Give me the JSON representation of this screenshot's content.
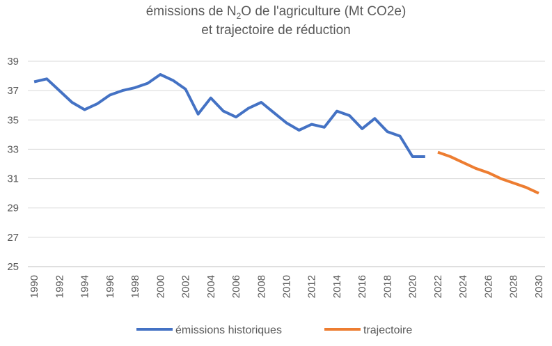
{
  "chart_data": {
    "type": "line",
    "title_parts": [
      "émissions de N",
      "2",
      "O de l'agriculture (Mt CO2e)"
    ],
    "subtitle": "et trajectoire de réduction",
    "ylim": [
      25,
      39
    ],
    "yticks": [
      "25",
      "27",
      "29",
      "31",
      "33",
      "35",
      "37",
      "39"
    ],
    "xticks": [
      "1990",
      "1992",
      "1994",
      "1996",
      "1998",
      "2000",
      "2002",
      "2004",
      "2006",
      "2008",
      "2010",
      "2012",
      "2014",
      "2016",
      "2018",
      "2020",
      "2022",
      "2024",
      "2026",
      "2028",
      "2030"
    ],
    "grid": true,
    "legend_position": "bottom",
    "series": [
      {
        "name": "émissions historiques",
        "color": "#4472C4",
        "x": [
          1990,
          1991,
          1992,
          1993,
          1994,
          1995,
          1996,
          1997,
          1998,
          1999,
          2000,
          2001,
          2002,
          2003,
          2004,
          2005,
          2006,
          2007,
          2008,
          2009,
          2010,
          2011,
          2012,
          2013,
          2014,
          2015,
          2016,
          2017,
          2018,
          2019,
          2020,
          2021
        ],
        "values": [
          37.6,
          37.8,
          37.0,
          36.2,
          35.7,
          36.1,
          36.7,
          37.0,
          37.2,
          37.5,
          38.1,
          37.7,
          37.1,
          35.4,
          36.5,
          35.6,
          35.2,
          35.8,
          36.2,
          35.5,
          34.8,
          34.3,
          34.7,
          34.5,
          35.6,
          35.3,
          34.4,
          35.1,
          34.2,
          33.9,
          32.5,
          32.5
        ]
      },
      {
        "name": "trajectoire",
        "color": "#ED7D31",
        "x": [
          2022,
          2023,
          2024,
          2025,
          2026,
          2027,
          2028,
          2029,
          2030
        ],
        "values": [
          32.8,
          32.5,
          32.1,
          31.7,
          31.4,
          31.0,
          30.7,
          30.4,
          30.0
        ]
      }
    ]
  }
}
